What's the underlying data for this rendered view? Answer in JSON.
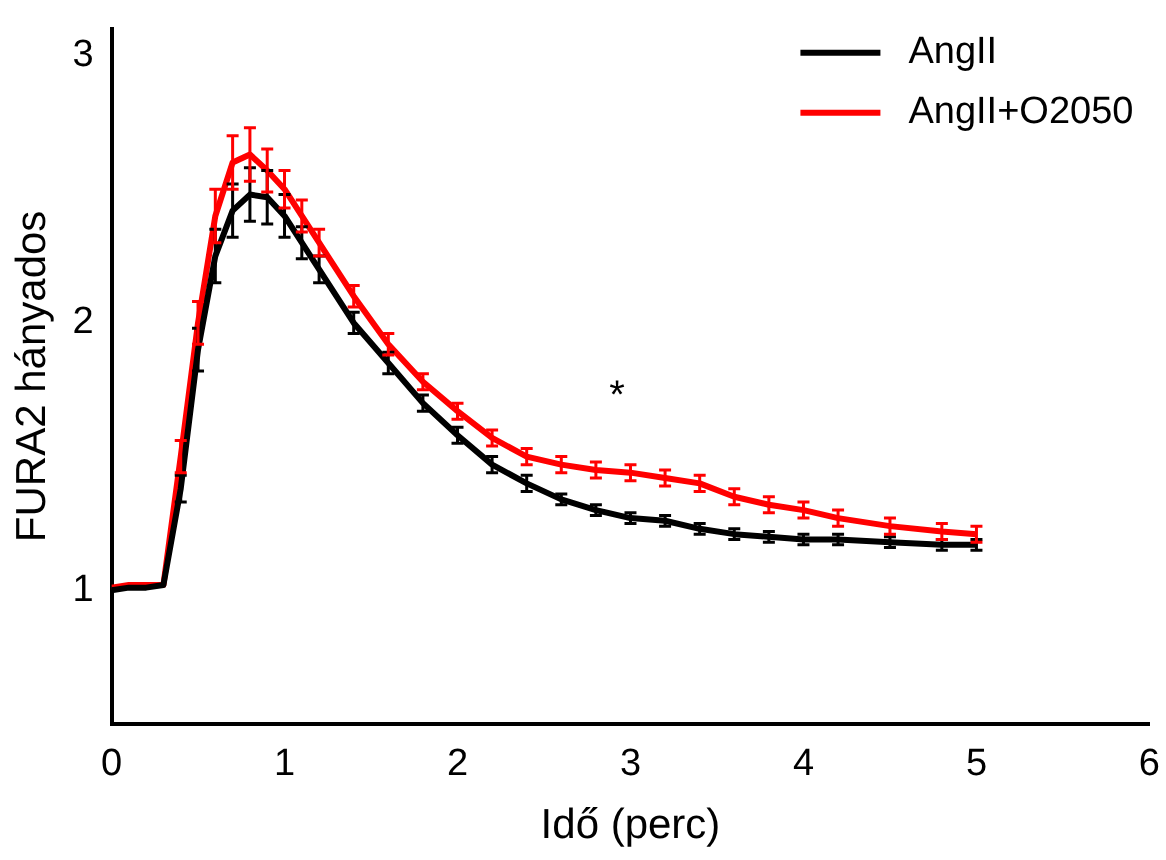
{
  "chart_data": {
    "type": "line",
    "xlabel": "Idő (perc)",
    "ylabel": "FURA2 hányados",
    "xlim": [
      0,
      6
    ],
    "xticks": [
      0,
      1,
      2,
      3,
      4,
      5,
      6
    ],
    "ylim": [
      0.5,
      3.1
    ],
    "yticks": [
      1,
      2,
      3
    ],
    "grid": false,
    "legend": "top right",
    "line_style": "solid",
    "x": [
      0,
      0.1,
      0.2,
      0.3,
      0.4,
      0.5,
      0.6,
      0.7,
      0.8,
      0.9,
      1.0,
      1.1,
      1.2,
      1.4,
      1.6,
      1.8,
      2.0,
      2.2,
      2.4,
      2.6,
      2.8,
      3.0,
      3.2,
      3.4,
      3.6,
      3.8,
      4.0,
      4.2,
      4.5,
      4.8,
      5.0
    ],
    "series": [
      {
        "name": "AngII",
        "color": "#000000",
        "values": [
          1.0,
          1.01,
          1.01,
          1.02,
          1.38,
          1.9,
          2.25,
          2.42,
          2.48,
          2.47,
          2.4,
          2.3,
          2.2,
          2.0,
          1.85,
          1.7,
          1.58,
          1.47,
          1.4,
          1.34,
          1.3,
          1.27,
          1.26,
          1.23,
          1.21,
          1.2,
          1.19,
          1.19,
          1.18,
          1.17,
          1.17
        ],
        "errors": [
          null,
          null,
          null,
          null,
          0.05,
          0.08,
          0.1,
          0.1,
          0.1,
          0.1,
          0.08,
          0.06,
          0.05,
          0.04,
          0.04,
          0.03,
          0.03,
          0.03,
          0.03,
          0.02,
          0.02,
          0.02,
          0.02,
          0.02,
          0.02,
          0.02,
          0.02,
          0.02,
          0.02,
          0.02,
          0.02
        ]
      },
      {
        "name": "AngII+O2050",
        "color": "#ff0000",
        "values": [
          1.01,
          1.02,
          1.02,
          1.02,
          1.5,
          2.0,
          2.4,
          2.6,
          2.63,
          2.57,
          2.5,
          2.4,
          2.3,
          2.1,
          1.92,
          1.78,
          1.67,
          1.57,
          1.5,
          1.47,
          1.45,
          1.44,
          1.42,
          1.4,
          1.35,
          1.32,
          1.3,
          1.27,
          1.24,
          1.22,
          1.21
        ],
        "errors": [
          null,
          null,
          null,
          null,
          0.06,
          0.08,
          0.1,
          0.1,
          0.1,
          0.08,
          0.07,
          0.06,
          0.05,
          0.04,
          0.04,
          0.03,
          0.03,
          0.03,
          0.03,
          0.03,
          0.03,
          0.03,
          0.03,
          0.03,
          0.03,
          0.03,
          0.03,
          0.03,
          0.03,
          0.03,
          0.03
        ]
      }
    ],
    "annotations": [
      "*"
    ]
  }
}
